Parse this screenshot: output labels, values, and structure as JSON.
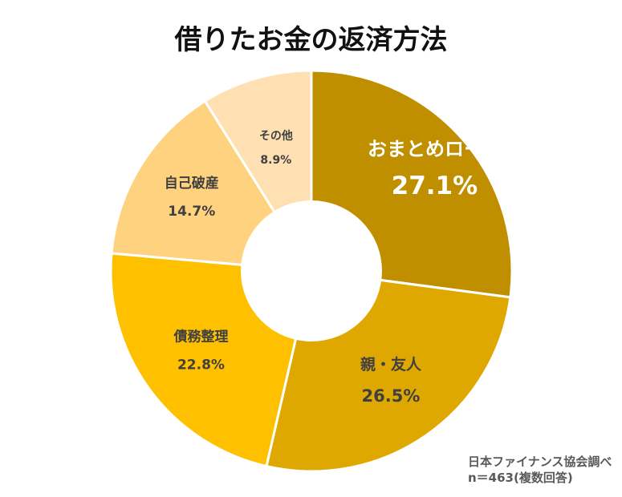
{
  "chart_data": {
    "type": "pie",
    "title": "借りたお金の返済方法",
    "categories": [
      "おまとめローン",
      "親・友人",
      "債務整理",
      "自己破産",
      "その他"
    ],
    "values": [
      27.1,
      26.5,
      22.8,
      14.7,
      8.9
    ],
    "value_labels": [
      "27.1%",
      "26.5%",
      "22.8%",
      "14.7%",
      "8.9%"
    ],
    "colors": [
      "#BF8F00",
      "#DFA800",
      "#FFC000",
      "#FFD27F",
      "#FFE0B2"
    ],
    "label_colors": [
      "#FFFFFF",
      "#404040",
      "#404040",
      "#404040",
      "#404040"
    ],
    "donut": true,
    "legend": "none"
  },
  "notes": {
    "source": "日本ファイナンス協会調べ",
    "sample": "n＝463(複数回答)"
  }
}
